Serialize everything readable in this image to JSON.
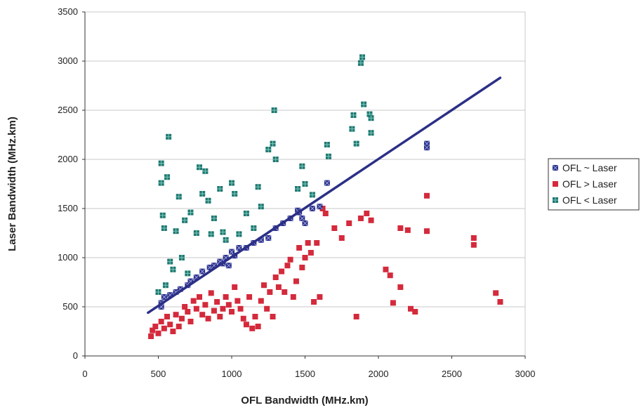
{
  "chart_data": {
    "type": "scatter",
    "title": "",
    "xlabel": "OFL Bandwidth (MHz.km)",
    "ylabel": "Laser Bandwidth (MHz.km)",
    "xlim": [
      0,
      3000
    ],
    "ylim": [
      0,
      3500
    ],
    "x_ticks": [
      "0",
      "500",
      "1000",
      "1500",
      "2000",
      "2500",
      "3000"
    ],
    "y_ticks": [
      "0",
      "500",
      "1000",
      "1500",
      "2000",
      "2500",
      "3000",
      "3500"
    ],
    "grid": "horizontal",
    "legend_position": "right",
    "series": [
      {
        "name": "OFL ~ Laser",
        "color": "#2b2f86",
        "marker": "square-x",
        "points": [
          [
            520,
            540
          ],
          [
            540,
            600
          ],
          [
            580,
            620
          ],
          [
            620,
            650
          ],
          [
            650,
            680
          ],
          [
            700,
            720
          ],
          [
            720,
            760
          ],
          [
            760,
            800
          ],
          [
            800,
            860
          ],
          [
            850,
            900
          ],
          [
            880,
            920
          ],
          [
            920,
            960
          ],
          [
            960,
            1000
          ],
          [
            1000,
            1060
          ],
          [
            1020,
            1020
          ],
          [
            1050,
            1100
          ],
          [
            1100,
            1100
          ],
          [
            1150,
            1150
          ],
          [
            1200,
            1180
          ],
          [
            1250,
            1200
          ],
          [
            1300,
            1300
          ],
          [
            1350,
            1350
          ],
          [
            1400,
            1400
          ],
          [
            1450,
            1480
          ],
          [
            1460,
            1460
          ],
          [
            1480,
            1400
          ],
          [
            1500,
            1350
          ],
          [
            1550,
            1500
          ],
          [
            1600,
            1520
          ],
          [
            1650,
            1760
          ],
          [
            2330,
            2160
          ],
          [
            2330,
            2120
          ],
          [
            940,
            940
          ],
          [
            980,
            920
          ],
          [
            520,
            500
          ]
        ]
      },
      {
        "name": "OFL > Laser",
        "color": "#d42a3c",
        "marker": "square",
        "points": [
          [
            450,
            200
          ],
          [
            460,
            260
          ],
          [
            480,
            300
          ],
          [
            500,
            230
          ],
          [
            520,
            350
          ],
          [
            540,
            280
          ],
          [
            560,
            400
          ],
          [
            580,
            320
          ],
          [
            600,
            250
          ],
          [
            620,
            420
          ],
          [
            640,
            300
          ],
          [
            660,
            380
          ],
          [
            680,
            500
          ],
          [
            700,
            450
          ],
          [
            720,
            350
          ],
          [
            740,
            560
          ],
          [
            760,
            480
          ],
          [
            780,
            600
          ],
          [
            800,
            420
          ],
          [
            820,
            520
          ],
          [
            840,
            380
          ],
          [
            860,
            640
          ],
          [
            880,
            460
          ],
          [
            900,
            550
          ],
          [
            920,
            400
          ],
          [
            940,
            480
          ],
          [
            960,
            600
          ],
          [
            980,
            520
          ],
          [
            1000,
            450
          ],
          [
            1020,
            700
          ],
          [
            1040,
            560
          ],
          [
            1060,
            480
          ],
          [
            1080,
            380
          ],
          [
            1100,
            320
          ],
          [
            1120,
            600
          ],
          [
            1140,
            280
          ],
          [
            1160,
            400
          ],
          [
            1180,
            300
          ],
          [
            1200,
            560
          ],
          [
            1220,
            720
          ],
          [
            1240,
            480
          ],
          [
            1260,
            650
          ],
          [
            1280,
            400
          ],
          [
            1300,
            800
          ],
          [
            1320,
            700
          ],
          [
            1340,
            860
          ],
          [
            1360,
            650
          ],
          [
            1380,
            920
          ],
          [
            1400,
            980
          ],
          [
            1420,
            600
          ],
          [
            1440,
            760
          ],
          [
            1460,
            1100
          ],
          [
            1480,
            900
          ],
          [
            1500,
            1000
          ],
          [
            1520,
            1150
          ],
          [
            1540,
            1050
          ],
          [
            1560,
            550
          ],
          [
            1580,
            1150
          ],
          [
            1600,
            600
          ],
          [
            1620,
            1500
          ],
          [
            1640,
            1450
          ],
          [
            1700,
            1300
          ],
          [
            1750,
            1200
          ],
          [
            1800,
            1350
          ],
          [
            1850,
            400
          ],
          [
            1880,
            1400
          ],
          [
            1920,
            1450
          ],
          [
            1950,
            1380
          ],
          [
            2050,
            880
          ],
          [
            2080,
            820
          ],
          [
            2100,
            540
          ],
          [
            2150,
            700
          ],
          [
            2150,
            1300
          ],
          [
            2200,
            1280
          ],
          [
            2220,
            480
          ],
          [
            2250,
            450
          ],
          [
            2330,
            1630
          ],
          [
            2330,
            1270
          ],
          [
            2650,
            1200
          ],
          [
            2650,
            1130
          ],
          [
            2830,
            550
          ],
          [
            2800,
            640
          ]
        ]
      },
      {
        "name": "OFL < Laser",
        "color": "#1f7870",
        "marker": "square-hatch",
        "points": [
          [
            500,
            650
          ],
          [
            520,
            1960
          ],
          [
            520,
            1760
          ],
          [
            530,
            1430
          ],
          [
            540,
            1300
          ],
          [
            550,
            720
          ],
          [
            560,
            1820
          ],
          [
            570,
            2230
          ],
          [
            580,
            960
          ],
          [
            600,
            880
          ],
          [
            620,
            1270
          ],
          [
            640,
            1620
          ],
          [
            660,
            1000
          ],
          [
            680,
            1380
          ],
          [
            700,
            840
          ],
          [
            720,
            1460
          ],
          [
            760,
            1250
          ],
          [
            780,
            1920
          ],
          [
            800,
            1650
          ],
          [
            820,
            1880
          ],
          [
            840,
            1580
          ],
          [
            860,
            1240
          ],
          [
            880,
            1400
          ],
          [
            920,
            1700
          ],
          [
            940,
            1260
          ],
          [
            960,
            1180
          ],
          [
            1000,
            1760
          ],
          [
            1020,
            1650
          ],
          [
            1050,
            1240
          ],
          [
            1100,
            1450
          ],
          [
            1150,
            1300
          ],
          [
            1180,
            1720
          ],
          [
            1200,
            1520
          ],
          [
            1250,
            2100
          ],
          [
            1280,
            2160
          ],
          [
            1290,
            2500
          ],
          [
            1300,
            2000
          ],
          [
            1450,
            1700
          ],
          [
            1480,
            1930
          ],
          [
            1500,
            1750
          ],
          [
            1550,
            1640
          ],
          [
            1650,
            2150
          ],
          [
            1660,
            2030
          ],
          [
            1820,
            2310
          ],
          [
            1830,
            2450
          ],
          [
            1850,
            2160
          ],
          [
            1880,
            2980
          ],
          [
            1890,
            3040
          ],
          [
            1900,
            2560
          ],
          [
            1940,
            2460
          ],
          [
            1950,
            2420
          ],
          [
            1950,
            2270
          ]
        ]
      }
    ],
    "trendline": {
      "color": "#2b2f86",
      "from": [
        430,
        440
      ],
      "to": [
        2830,
        2830
      ]
    }
  }
}
